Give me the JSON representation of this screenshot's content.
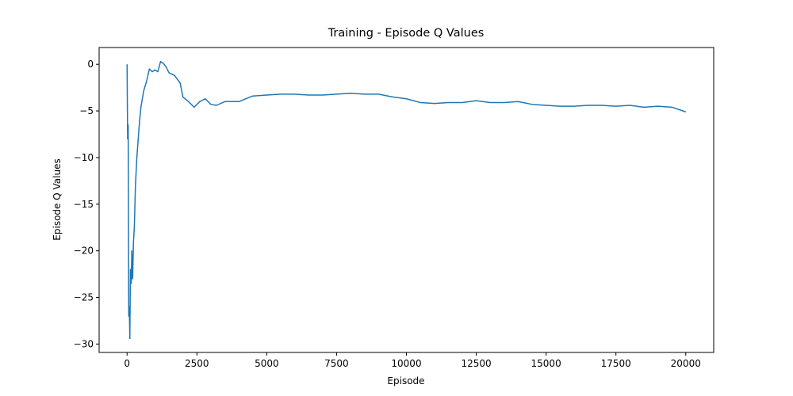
{
  "chart_data": {
    "type": "line",
    "title": "Training - Episode Q Values",
    "x_label": "Episode",
    "y_label": "Episode Q Values",
    "color": "#1f77b4",
    "x": [
      0,
      20,
      40,
      60,
      80,
      100,
      120,
      150,
      170,
      200,
      230,
      260,
      300,
      350,
      400,
      450,
      500,
      600,
      700,
      800,
      900,
      1000,
      1100,
      1200,
      1300,
      1400,
      1500,
      1700,
      1900,
      2000,
      2200,
      2400,
      2600,
      2800,
      3000,
      3200,
      3500,
      4000,
      4500,
      5000,
      5500,
      6000,
      6500,
      7000,
      7500,
      8000,
      8500,
      9000,
      9500,
      10000,
      10500,
      11000,
      11500,
      12000,
      12500,
      13000,
      13500,
      14000,
      14500,
      15000,
      15500,
      16000,
      16500,
      17000,
      17500,
      18000,
      18500,
      19000,
      19500,
      20000
    ],
    "values": [
      0,
      -8,
      -6.5,
      -27,
      -26,
      -29.4,
      -22,
      -23.5,
      -20,
      -23,
      -19,
      -17.5,
      -13,
      -10,
      -8,
      -6,
      -4.5,
      -2.8,
      -1.8,
      -0.5,
      -0.8,
      -0.6,
      -0.8,
      0.3,
      0.1,
      -0.3,
      -0.9,
      -1.2,
      -2,
      -3.5,
      -4,
      -4.6,
      -4,
      -3.7,
      -4.3,
      -4.4,
      -4,
      -4,
      -3.4,
      -3.3,
      -3.2,
      -3.2,
      -3.3,
      -3.3,
      -3.2,
      -3.1,
      -3.2,
      -3.2,
      -3.5,
      -3.7,
      -4.1,
      -4.2,
      -4.1,
      -4.1,
      -3.9,
      -4.1,
      -4.1,
      -4,
      -4.3,
      -4.4,
      -4.5,
      -4.5,
      -4.4,
      -4.4,
      -4.5,
      -4.4,
      -4.6,
      -4.5,
      -4.6,
      -5.1
    ],
    "xlim": [
      -1000,
      21000
    ],
    "ylim": [
      -30.9,
      1.8
    ],
    "xticks": [
      0,
      2500,
      5000,
      7500,
      10000,
      12500,
      15000,
      17500,
      20000
    ],
    "yticks": [
      {
        "value": -30,
        "label": "−30"
      },
      {
        "value": -25,
        "label": "−25"
      },
      {
        "value": -20,
        "label": "−20"
      },
      {
        "value": -15,
        "label": "−15"
      },
      {
        "value": -10,
        "label": "−10"
      },
      {
        "value": -5,
        "label": "−5"
      },
      0
    ]
  }
}
